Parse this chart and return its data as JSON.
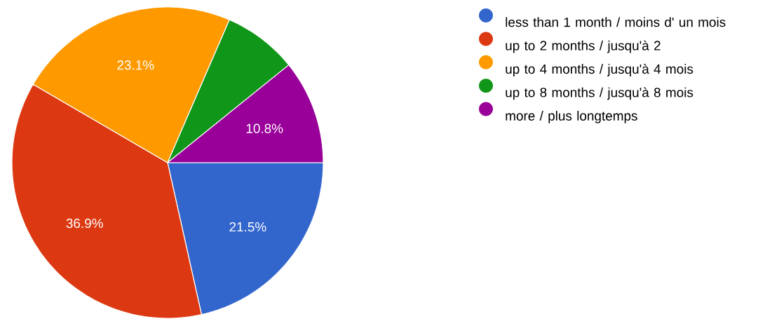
{
  "chart_data": {
    "type": "pie",
    "categories": [
      "less than 1 month / moins d' un mois",
      "up to 2 months / jusqu'à 2",
      "up to 4 months / jusqu'à 4 mois",
      "up to 8 months / jusqu'à 8 mois",
      "more / plus longtemps"
    ],
    "values": [
      21.5,
      36.9,
      23.1,
      7.7,
      10.8
    ],
    "value_labels": [
      "21.5%",
      "36.9%",
      "23.1%",
      null,
      "10.8%"
    ],
    "colors": [
      "#3366cc",
      "#dc3912",
      "#ff9900",
      "#109618",
      "#990099"
    ],
    "legend": "right"
  }
}
